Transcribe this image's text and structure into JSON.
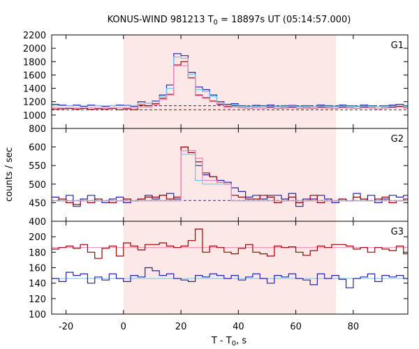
{
  "chart_data": {
    "type": "line",
    "title": "KONUS-WIND 981213 T",
    "title_sub": "0",
    "title_rest": " = 18897s UT (05:14:57.000)",
    "xlabel": "T - T",
    "xlabel_sub": "0",
    "xlabel_rest": ", s",
    "ylabel": "counts / sec",
    "xlim": [
      -25,
      99
    ],
    "x_ticks": [
      -20,
      0,
      20,
      40,
      60,
      80
    ],
    "shaded_interval": [
      0,
      74
    ],
    "bin_width": 2.5,
    "x_start": -25,
    "colors": {
      "blue": "#2222aa",
      "red": "#990000",
      "light_blue": "#66ccee",
      "pink": "#ee88bb",
      "shade": "#fde8e8"
    },
    "panels": [
      {
        "label": "G1",
        "ylim": [
          800,
          2200
        ],
        "y_ticks": [
          800,
          1000,
          1200,
          1400,
          1600,
          1800,
          2000,
          2200
        ],
        "series": [
          {
            "color": "blue",
            "values": [
              1160,
              1150,
              1140,
              1150,
              1130,
              1150,
              1140,
              1130,
              1140,
              1150,
              1145,
              1130,
              1200,
              1180,
              1210,
              1300,
              1450,
              1920,
              1890,
              1640,
              1420,
              1380,
              1300,
              1200,
              1160,
              1170,
              1140,
              1130,
              1145,
              1140,
              1150,
              1130,
              1140,
              1145,
              1130,
              1140,
              1120,
              1150,
              1140,
              1130,
              1150,
              1140,
              1130,
              1150,
              1140,
              1120,
              1140,
              1150,
              1160,
              1140
            ]
          },
          {
            "color": "red",
            "values": [
              1090,
              1095,
              1100,
              1090,
              1100,
              1085,
              1095,
              1090,
              1100,
              1080,
              1095,
              1080,
              1150,
              1140,
              1170,
              1250,
              1310,
              1750,
              1800,
              1560,
              1300,
              1260,
              1210,
              1160,
              1130,
              1140,
              1110,
              1100,
              1110,
              1105,
              1120,
              1100,
              1110,
              1120,
              1100,
              1110,
              1100,
              1120,
              1110,
              1100,
              1120,
              1110,
              1100,
              1120,
              1110,
              1090,
              1110,
              1120,
              1130,
              1110
            ]
          },
          {
            "color": "light_blue",
            "values": [
              1140,
              1140,
              1140,
              1140,
              1140,
              1140,
              1140,
              1140,
              1140,
              1140,
              1140,
              1140,
              1180,
              1180,
              1200,
              1280,
              1400,
              1870,
              1850,
              1610,
              1380,
              1350,
              1280,
              1180,
              1140,
              1150,
              1130,
              1125,
              1130,
              1130,
              1135,
              1125,
              1130,
              1135,
              1125,
              1130,
              1120,
              1135,
              1130,
              1125,
              1135,
              1130,
              1125,
              1135,
              1130,
              1120,
              1130,
              1135,
              1140,
              1130
            ]
          },
          {
            "color": "pink",
            "values": [
              1110,
              1110,
              1110,
              1110,
              1110,
              1110,
              1110,
              1110,
              1110,
              1110,
              1110,
              1110,
              1120,
              1120,
              1150,
              1230,
              1300,
              1740,
              1740,
              1550,
              1290,
              1250,
              1200,
              1150,
              1110,
              1120,
              1110,
              1100,
              1110,
              1105,
              1110,
              1100,
              1105,
              1110,
              1100,
              1105,
              1100,
              1110,
              1105,
              1100,
              1110,
              1105,
              1100,
              1110,
              1105,
              1090,
              1105,
              1110,
              1115,
              1105
            ]
          }
        ],
        "baselines": [
          {
            "color": "blue",
            "value": 1140
          },
          {
            "color": "red",
            "value": 1080
          }
        ]
      },
      {
        "label": "G2",
        "ylim": [
          400,
          650
        ],
        "y_ticks": [
          400,
          450,
          500,
          550,
          600
        ],
        "series": [
          {
            "color": "blue",
            "values": [
              465,
              455,
              470,
              440,
              460,
              470,
              455,
              450,
              460,
              465,
              450,
              455,
              460,
              470,
              460,
              470,
              475,
              460,
              600,
              590,
              550,
              525,
              520,
              510,
              505,
              490,
              480,
              465,
              470,
              460,
              470,
              470,
              460,
              475,
              440,
              460,
              460,
              470,
              460,
              450,
              460,
              455,
              475,
              460,
              470,
              450,
              460,
              470,
              465,
              470
            ]
          },
          {
            "color": "red",
            "values": [
              455,
              460,
              450,
              445,
              455,
              450,
              460,
              455,
              450,
              455,
              460,
              455,
              460,
              465,
              465,
              470,
              460,
              465,
              600,
              585,
              560,
              530,
              520,
              505,
              500,
              470,
              465,
              460,
              460,
              470,
              465,
              450,
              455,
              465,
              450,
              455,
              470,
              450,
              455,
              455,
              460,
              455,
              465,
              460,
              455,
              460,
              465,
              450,
              455,
              460
            ]
          },
          {
            "color": "light_blue",
            "values": [
              455,
              455,
              455,
              455,
              455,
              455,
              455,
              455,
              455,
              455,
              455,
              455,
              455,
              455,
              455,
              455,
              455,
              455,
              580,
              580,
              510,
              500,
              500,
              500,
              500,
              455,
              455,
              455,
              455,
              455,
              455,
              455,
              455,
              455,
              455,
              455,
              455,
              455,
              455,
              455,
              455,
              455,
              455,
              455,
              455,
              455,
              455,
              455,
              455,
              455
            ]
          },
          {
            "color": "pink",
            "values": [
              455,
              455,
              455,
              455,
              455,
              455,
              455,
              455,
              455,
              455,
              455,
              455,
              455,
              455,
              455,
              455,
              455,
              455,
              590,
              590,
              570,
              510,
              510,
              505,
              500,
              455,
              455,
              455,
              455,
              455,
              455,
              455,
              455,
              455,
              455,
              455,
              455,
              455,
              455,
              455,
              455,
              455,
              455,
              455,
              455,
              455,
              455,
              455,
              455,
              455
            ]
          }
        ],
        "baselines": [
          {
            "color": "blue",
            "value": 456
          }
        ]
      },
      {
        "label": "G3",
        "ylim": [
          100,
          220
        ],
        "y_ticks": [
          100,
          120,
          140,
          160,
          180,
          200
        ],
        "series": [
          {
            "color": "red",
            "values": [
              184,
              186,
              188,
              185,
              190,
              180,
              172,
              185,
              188,
              175,
              192,
              188,
              183,
              190,
              190,
              192,
              188,
              186,
              188,
              195,
              210,
              180,
              188,
              186,
              180,
              178,
              185,
              190,
              180,
              178,
              175,
              188,
              186,
              187,
              180,
              176,
              182,
              188,
              186,
              190,
              190,
              188,
              184,
              186,
              180,
              186,
              184,
              182,
              188,
              178
            ]
          },
          {
            "color": "blue",
            "values": [
              146,
              142,
              154,
              150,
              152,
              140,
              148,
              144,
              152,
              146,
              142,
              150,
              148,
              160,
              156,
              150,
              152,
              146,
              144,
              142,
              150,
              148,
              152,
              150,
              146,
              150,
              144,
              148,
              152,
              146,
              140,
              150,
              148,
              152,
              146,
              144,
              138,
              152,
              146,
              150,
              145,
              134,
              146,
              148,
              152,
              142,
              150,
              148,
              150,
              146
            ]
          }
        ],
        "baselines": [
          {
            "color": "pink",
            "value": 186
          },
          {
            "color": "light_blue",
            "value": 146
          }
        ]
      }
    ]
  }
}
